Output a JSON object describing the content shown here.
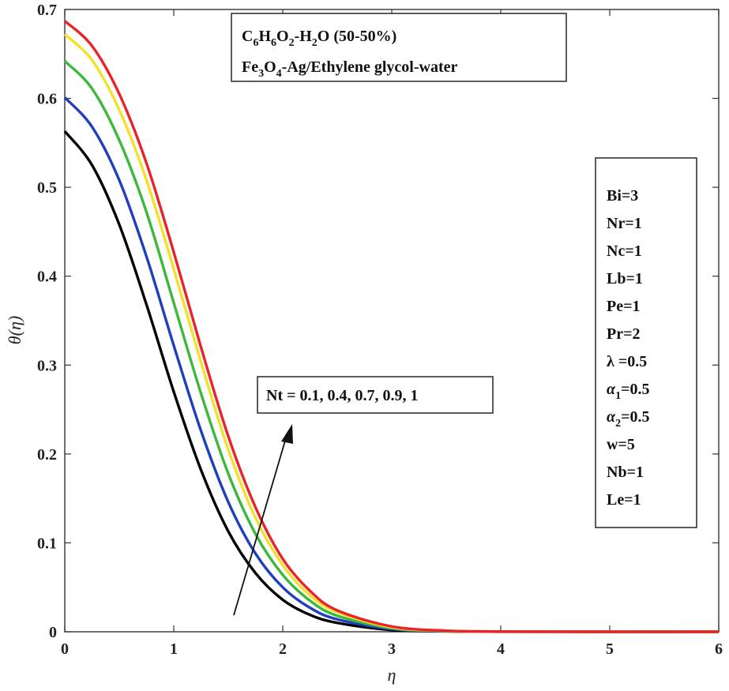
{
  "chart_data": {
    "type": "line",
    "xlabel": "η",
    "ylabel": "θ(η)",
    "xlim": [
      0,
      6
    ],
    "ylim": [
      0,
      0.7
    ],
    "xticks": [
      "0",
      "1",
      "2",
      "3",
      "4",
      "5",
      "6"
    ],
    "yticks": [
      "0",
      "0.1",
      "0.2",
      "0.3",
      "0.4",
      "0.5",
      "0.6",
      "0.7"
    ],
    "grid": false,
    "x": [
      0,
      0.25,
      0.5,
      0.75,
      1.0,
      1.25,
      1.5,
      1.75,
      2.0,
      2.25,
      2.5,
      3.0,
      3.5,
      4.0,
      5.0,
      6.0
    ],
    "series": [
      {
        "name": "Nt = 0.1",
        "color": "#000000",
        "values": [
          0.563,
          0.525,
          0.458,
          0.368,
          0.27,
          0.182,
          0.113,
          0.066,
          0.036,
          0.019,
          0.01,
          0.002,
          0.0005,
          0.0001,
          0.0,
          0.0
        ]
      },
      {
        "name": "Nt = 0.4",
        "color": "#1f3fbf",
        "values": [
          0.601,
          0.568,
          0.508,
          0.422,
          0.322,
          0.226,
          0.146,
          0.088,
          0.05,
          0.027,
          0.014,
          0.003,
          0.0007,
          0.0002,
          0.0,
          0.0
        ]
      },
      {
        "name": "Nt = 0.7",
        "color": "#3cb83c",
        "values": [
          0.642,
          0.611,
          0.553,
          0.472,
          0.37,
          0.268,
          0.178,
          0.11,
          0.064,
          0.035,
          0.018,
          0.004,
          0.0009,
          0.0002,
          0.0,
          0.0
        ]
      },
      {
        "name": "Nt = 0.9",
        "color": "#f2e02a",
        "values": [
          0.672,
          0.643,
          0.587,
          0.508,
          0.408,
          0.303,
          0.205,
          0.128,
          0.075,
          0.041,
          0.022,
          0.005,
          0.001,
          0.0003,
          0.0,
          0.0
        ]
      },
      {
        "name": "Nt = 1",
        "color": "#e8232a",
        "values": [
          0.687,
          0.659,
          0.605,
          0.527,
          0.427,
          0.32,
          0.22,
          0.14,
          0.082,
          0.046,
          0.024,
          0.006,
          0.0012,
          0.0003,
          0.0,
          0.0
        ]
      }
    ],
    "annotations": {
      "fluid_line1": "C6H6O2-H2O (50-50%)",
      "fluid_line2": "Fe3O4-Ag/Ethylene glycol-water",
      "nt_label": "Nt = 0.1, 0.4, 0.7, 0.9, 1",
      "params": [
        "Bi=3",
        "Nr=1",
        "Nc=1",
        "Lb=1",
        "Pe=1",
        "Pr=2",
        "λ =0.5",
        "α1=0.5",
        "α2=0.5",
        "w=5",
        "Nb=1",
        "Le=1"
      ]
    }
  }
}
